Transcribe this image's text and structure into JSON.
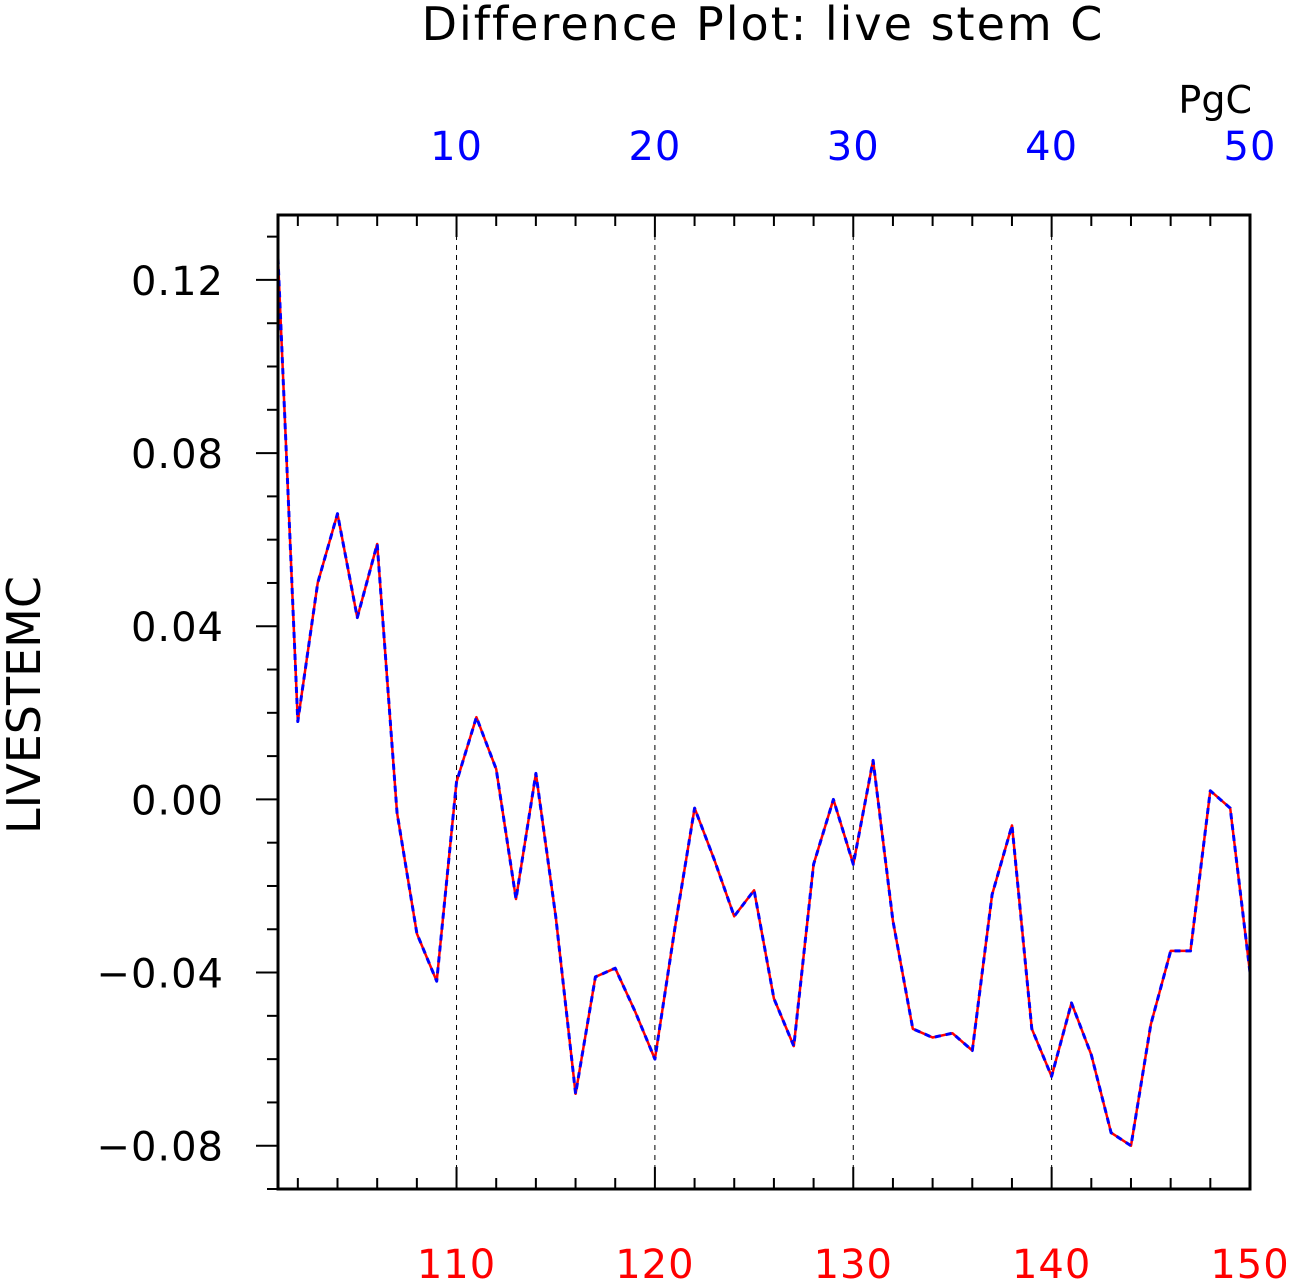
{
  "chart_data": {
    "type": "line",
    "title": "Difference Plot: live stem C",
    "ylabel": "LIVESTEMC",
    "units": "PgC",
    "ylim": [
      -0.09,
      0.135
    ],
    "yticks": [
      -0.08,
      -0.04,
      0.0,
      0.04,
      0.08,
      0.12
    ],
    "ytick_labels": [
      "−0.08",
      "−0.04",
      "0.00",
      "0.04",
      "0.08",
      "0.12"
    ],
    "x_top": {
      "range": [
        1,
        50
      ],
      "ticks": [
        10,
        20,
        30,
        40,
        50
      ],
      "color": "#0000ff"
    },
    "x_bottom": {
      "range": [
        101,
        150
      ],
      "ticks": [
        110,
        120,
        130,
        140,
        150
      ],
      "color": "#ff0000"
    },
    "grid": "vertical dashed at major x ticks",
    "x": [
      1,
      2,
      3,
      4,
      5,
      6,
      7,
      8,
      9,
      10,
      11,
      12,
      13,
      14,
      15,
      16,
      17,
      18,
      19,
      20,
      21,
      22,
      23,
      24,
      25,
      26,
      27,
      28,
      29,
      30,
      31,
      32,
      33,
      34,
      35,
      36,
      37,
      38,
      39,
      40,
      41,
      42,
      43,
      44,
      45,
      46,
      47,
      48,
      49,
      50
    ],
    "series": [
      {
        "color": "#ff0000",
        "style": "solid",
        "values": [
          0.125,
          0.018,
          0.05,
          0.066,
          0.042,
          0.059,
          -0.003,
          -0.031,
          -0.042,
          0.004,
          0.019,
          0.007,
          -0.023,
          0.006,
          -0.027,
          -0.068,
          -0.041,
          -0.039,
          -0.049,
          -0.06,
          -0.03,
          -0.002,
          -0.014,
          -0.027,
          -0.021,
          -0.046,
          -0.057,
          -0.015,
          0.0,
          -0.015,
          0.009,
          -0.028,
          -0.053,
          -0.055,
          -0.054,
          -0.058,
          -0.022,
          -0.006,
          -0.053,
          -0.064,
          -0.047,
          -0.059,
          -0.077,
          -0.08,
          -0.052,
          -0.035,
          -0.035,
          0.002,
          -0.002,
          -0.04
        ]
      },
      {
        "color": "#0000ff",
        "style": "dashed",
        "values": [
          0.125,
          0.018,
          0.05,
          0.066,
          0.042,
          0.059,
          -0.003,
          -0.031,
          -0.042,
          0.004,
          0.019,
          0.007,
          -0.023,
          0.006,
          -0.027,
          -0.068,
          -0.041,
          -0.039,
          -0.049,
          -0.06,
          -0.03,
          -0.002,
          -0.014,
          -0.027,
          -0.021,
          -0.046,
          -0.057,
          -0.015,
          0.0,
          -0.015,
          0.009,
          -0.028,
          -0.053,
          -0.055,
          -0.054,
          -0.058,
          -0.022,
          -0.006,
          -0.053,
          -0.064,
          -0.047,
          -0.059,
          -0.077,
          -0.08,
          -0.052,
          -0.035,
          -0.035,
          0.002,
          -0.002,
          -0.04
        ]
      }
    ]
  }
}
